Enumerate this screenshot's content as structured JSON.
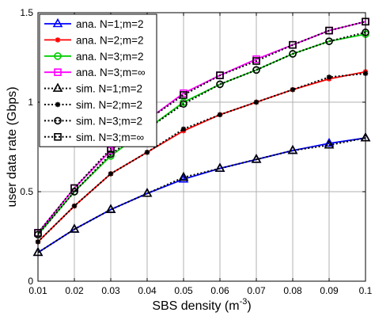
{
  "chart_data": {
    "type": "line",
    "xlabel": "SBS density (m",
    "xlabel_exp": "-3",
    "xlabel_close": ")",
    "ylabel": "user data rate (Gbps)",
    "xlim": [
      0.01,
      0.1
    ],
    "ylim": [
      0,
      1.5
    ],
    "grid": true,
    "legend_position": "top-left",
    "x_ticks": [
      "0.01",
      "0.02",
      "0.03",
      "0.04",
      "0.05",
      "0.06",
      "0.07",
      "0.08",
      "0.09",
      "0.1"
    ],
    "y_ticks": [
      "0",
      "0.5",
      "1",
      "1.5"
    ],
    "x": [
      0.01,
      0.02,
      0.03,
      0.04,
      0.05,
      0.06,
      0.07,
      0.08,
      0.09,
      0.1
    ],
    "series": [
      {
        "name": "ana. N=1;m=2",
        "color": "#0000ff",
        "style": "solid",
        "marker": "triangle",
        "values": [
          0.16,
          0.29,
          0.4,
          0.49,
          0.57,
          0.63,
          0.68,
          0.73,
          0.77,
          0.8
        ]
      },
      {
        "name": "ana. N=2;m=2",
        "color": "#ff0000",
        "style": "solid",
        "marker": "star",
        "values": [
          0.22,
          0.42,
          0.6,
          0.72,
          0.84,
          0.93,
          1.0,
          1.07,
          1.13,
          1.17
        ]
      },
      {
        "name": "ana. N=3;m=2",
        "color": "#00cc00",
        "style": "solid",
        "marker": "circle",
        "values": [
          0.26,
          0.5,
          0.7,
          0.85,
          1.0,
          1.1,
          1.18,
          1.27,
          1.34,
          1.38
        ]
      },
      {
        "name": "ana. N=3;m=∞",
        "color": "#ff00ff",
        "style": "solid",
        "marker": "square",
        "values": [
          0.27,
          0.52,
          0.73,
          0.9,
          1.05,
          1.15,
          1.24,
          1.32,
          1.4,
          1.45
        ]
      },
      {
        "name": "sim. N=1;m=2",
        "color": "#000000",
        "style": "dotted",
        "marker": "triangle",
        "values": [
          0.16,
          0.29,
          0.4,
          0.49,
          0.58,
          0.63,
          0.68,
          0.73,
          0.76,
          0.8
        ]
      },
      {
        "name": "sim. N=2;m=2",
        "color": "#000000",
        "style": "dotted",
        "marker": "star",
        "values": [
          0.22,
          0.42,
          0.6,
          0.72,
          0.85,
          0.93,
          1.0,
          1.07,
          1.14,
          1.16
        ]
      },
      {
        "name": "sim. N=3;m=2",
        "color": "#000000",
        "style": "dotted",
        "marker": "circle",
        "values": [
          0.26,
          0.5,
          0.71,
          0.85,
          0.99,
          1.1,
          1.18,
          1.27,
          1.34,
          1.39
        ]
      },
      {
        "name": "sim. N=3;m=∞",
        "color": "#000000",
        "style": "dotted",
        "marker": "square",
        "values": [
          0.27,
          0.52,
          0.74,
          0.9,
          1.04,
          1.15,
          1.23,
          1.32,
          1.4,
          1.45
        ]
      }
    ]
  }
}
